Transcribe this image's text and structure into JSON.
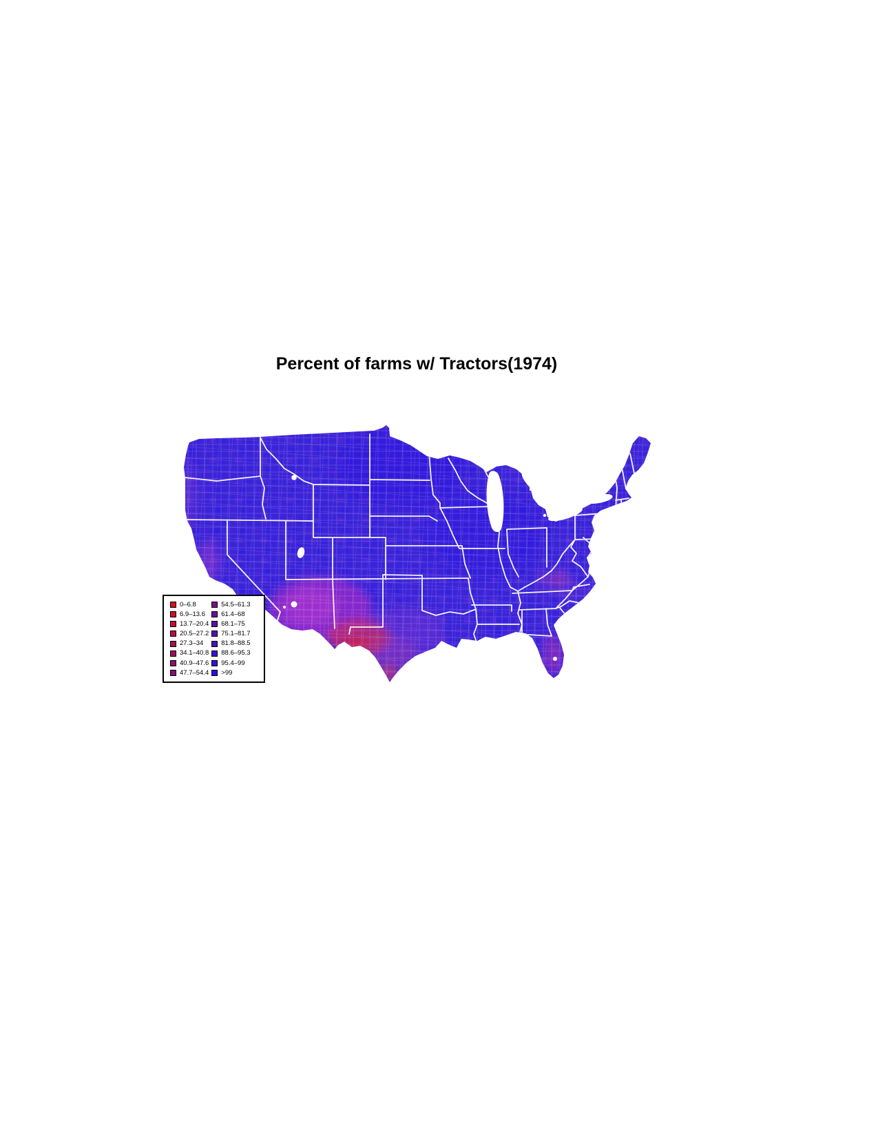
{
  "title": "Percent of farms w/ Tractors(1974)",
  "map": {
    "description": "United States lower-48 county-level choropleth",
    "base_color": "#3b24d8",
    "low_color": "#d81018",
    "high_color": "#2610e8"
  },
  "legend": {
    "left_column": [
      {
        "label": "0–6.8",
        "color": "#d81018"
      },
      {
        "label": "6.9–13.6",
        "color": "#cc1026"
      },
      {
        "label": "13.7–20.4",
        "color": "#c01034"
      },
      {
        "label": "20.5–27.2",
        "color": "#b41042"
      },
      {
        "label": "27.3–34",
        "color": "#a81050"
      },
      {
        "label": "34.1–40.8",
        "color": "#9d105d"
      },
      {
        "label": "40.9–47.6",
        "color": "#91106b"
      },
      {
        "label": "47.7–54.4",
        "color": "#851079"
      }
    ],
    "right_column": [
      {
        "label": "54.5–61.3",
        "color": "#791087"
      },
      {
        "label": "61.4–68",
        "color": "#6d1095"
      },
      {
        "label": "68.1–75",
        "color": "#6110a3"
      },
      {
        "label": "75.1–81.7",
        "color": "#5510b1"
      },
      {
        "label": "81.8–88.5",
        "color": "#4910bf"
      },
      {
        "label": "88.6–95.3",
        "color": "#3e10cd"
      },
      {
        "label": "95.4–99",
        "color": "#3210da"
      },
      {
        "label": ">99",
        "color": "#2610e8"
      }
    ]
  }
}
